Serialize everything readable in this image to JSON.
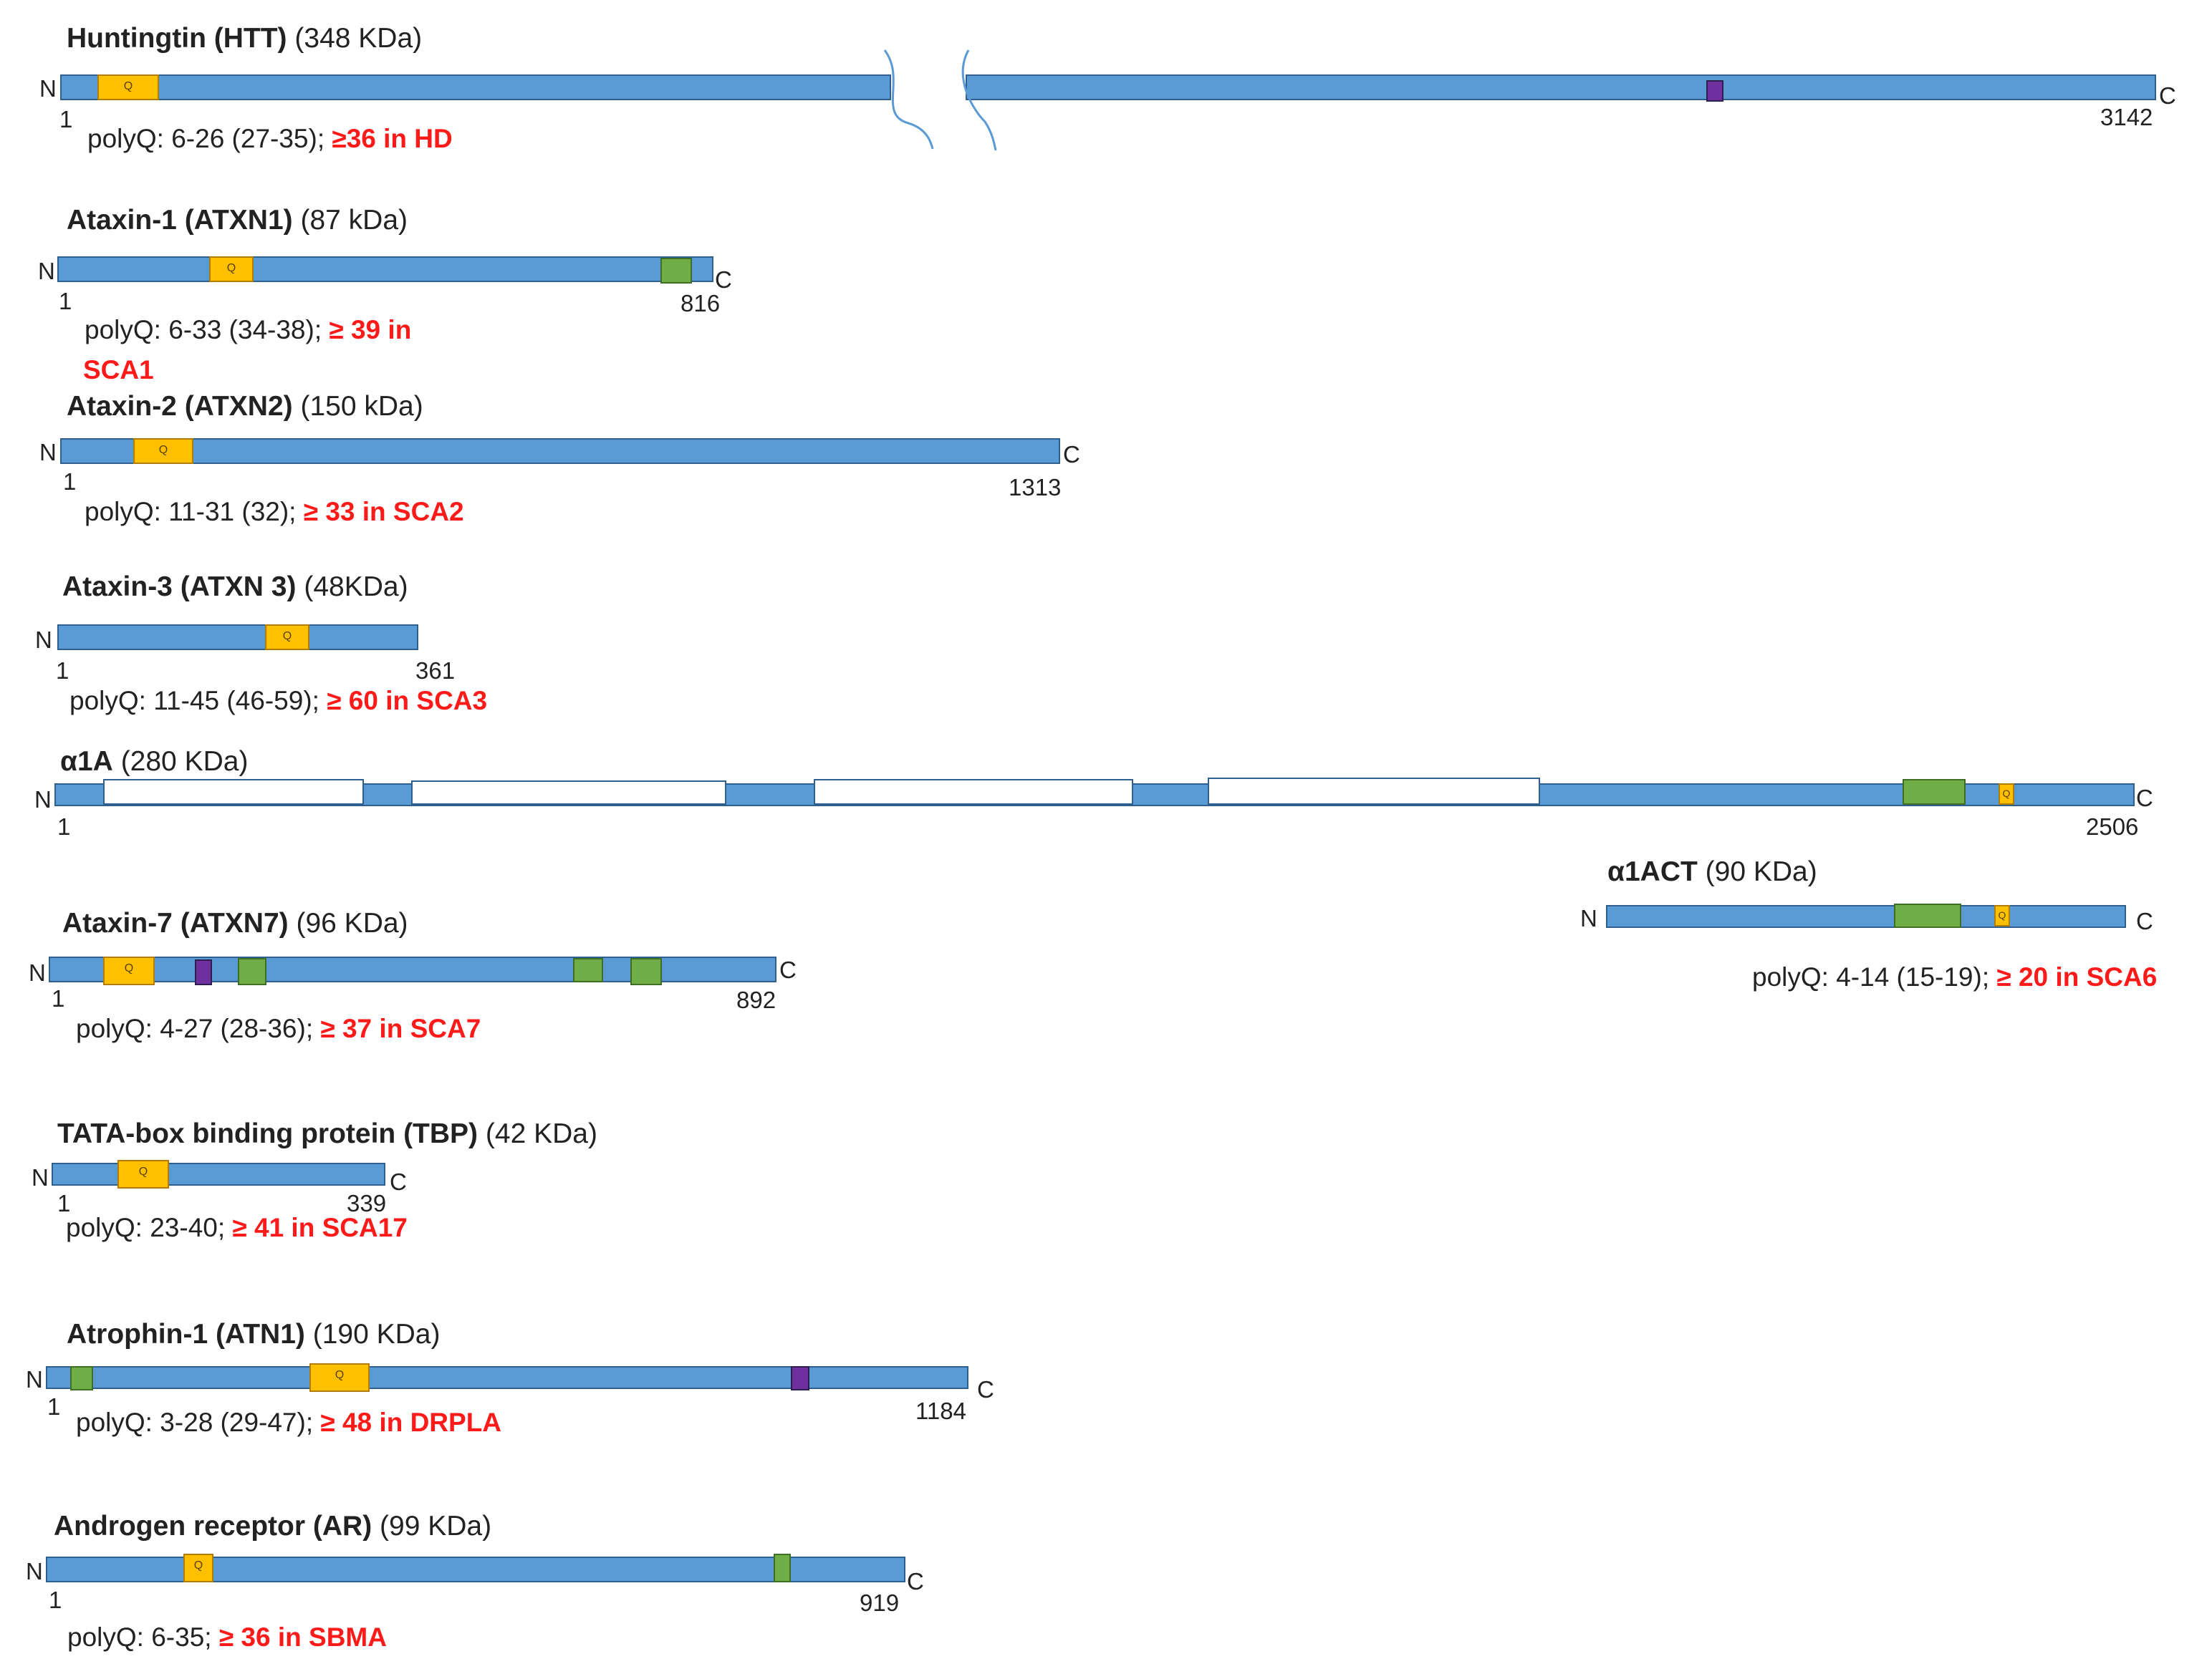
{
  "labels": {
    "n": "N",
    "c": "C",
    "q": "Q",
    "one": "1"
  },
  "htt": {
    "name": "Huntingtin (HTT)",
    "mw": "(348 KDa)",
    "end": "3142",
    "polyq": "polyQ: 6-26 (27-35); ",
    "disease": "≥36 in HD"
  },
  "atxn1": {
    "name": "Ataxin-1 (ATXN1)",
    "mw": "(87 kDa)",
    "end": "816",
    "polyq": "polyQ: 6-33 (34-38); ",
    "disease1": "≥ 39 in",
    "disease2": "SCA1"
  },
  "atxn2": {
    "name": "Ataxin-2 (ATXN2)",
    "mw": "(150 kDa)",
    "end": "1313",
    "polyq": "polyQ: 11-31 (32); ",
    "disease": "≥ 33 in SCA2"
  },
  "atxn3": {
    "name": "Ataxin-3 (ATXN 3)",
    "mw": "(48KDa)",
    "end": "361",
    "polyq": "polyQ: 11-45 (46-59); ",
    "disease": "≥ 60 in SCA3"
  },
  "a1a": {
    "name": "α1A",
    "mw": "(280 KDa)",
    "end": "2506"
  },
  "a1act": {
    "name": "α1ACT",
    "mw": "(90 KDa)",
    "polyq": "polyQ: 4-14 (15-19); ",
    "disease": "≥ 20  in SCA6"
  },
  "atxn7": {
    "name": "Ataxin-7 (ATXN7)",
    "mw": "(96 KDa)",
    "end": "892",
    "polyq": "polyQ: 4-27 (28-36); ",
    "disease": "≥ 37 in SCA7"
  },
  "tbp": {
    "name": "TATA-box binding protein (TBP)",
    "mw": "(42 KDa)",
    "end": "339",
    "polyq": "polyQ: 23-40; ",
    "disease": "≥ 41 in SCA17"
  },
  "atn1": {
    "name": "Atrophin-1 (ATN1)",
    "mw": "(190 KDa)",
    "end": "1184",
    "polyq": "polyQ: 3-28 (29-47); ",
    "disease": "≥ 48 in DRPLA"
  },
  "ar": {
    "name": "Androgen receptor (AR)",
    "mw": "(99 KDa)",
    "end": "919",
    "polyq": "polyQ: 6-35; ",
    "disease": "≥ 36 in SBMA"
  },
  "colors": {
    "bar": "#5b9bd5",
    "polyq": "#ffc000",
    "green_domain": "#70ad47",
    "purple_domain": "#7030a0",
    "disease_text": "#ff1a1a"
  }
}
